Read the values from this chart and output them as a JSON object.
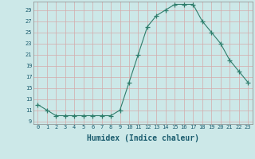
{
  "x": [
    0,
    1,
    2,
    3,
    4,
    5,
    6,
    7,
    8,
    9,
    10,
    11,
    12,
    13,
    14,
    15,
    16,
    17,
    18,
    19,
    20,
    21,
    22,
    23
  ],
  "y": [
    12,
    11,
    10,
    10,
    10,
    10,
    10,
    10,
    10,
    11,
    16,
    21,
    26,
    28,
    29,
    30,
    30,
    30,
    27,
    25,
    23,
    20,
    18,
    16
  ],
  "line_color": "#2e7d6b",
  "marker": "+",
  "bg_color": "#cce8e8",
  "grid_color_v": "#d4aaaa",
  "grid_color_h": "#d4aaaa",
  "xlabel": "Humidex (Indice chaleur)",
  "yticks": [
    9,
    11,
    13,
    15,
    17,
    19,
    21,
    23,
    25,
    27,
    29
  ],
  "xlim": [
    -0.5,
    23.5
  ],
  "ylim": [
    8.5,
    30.5
  ],
  "tick_color": "#1a5c6e",
  "xlabel_fontsize": 7,
  "tick_fontsize": 5
}
